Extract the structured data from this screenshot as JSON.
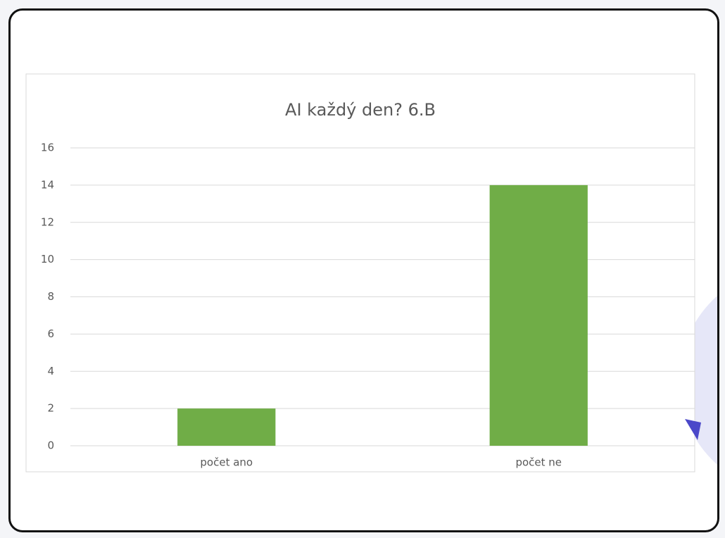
{
  "chart_data": {
    "type": "bar",
    "title": "AI každý den? 6.B",
    "categories": [
      "počet ano",
      "počet ne"
    ],
    "values": [
      2,
      14
    ],
    "color": "#70ad47",
    "ylim": [
      0,
      16
    ],
    "yticks": [
      0,
      2,
      4,
      6,
      8,
      10,
      12,
      14,
      16
    ],
    "grid": true
  }
}
